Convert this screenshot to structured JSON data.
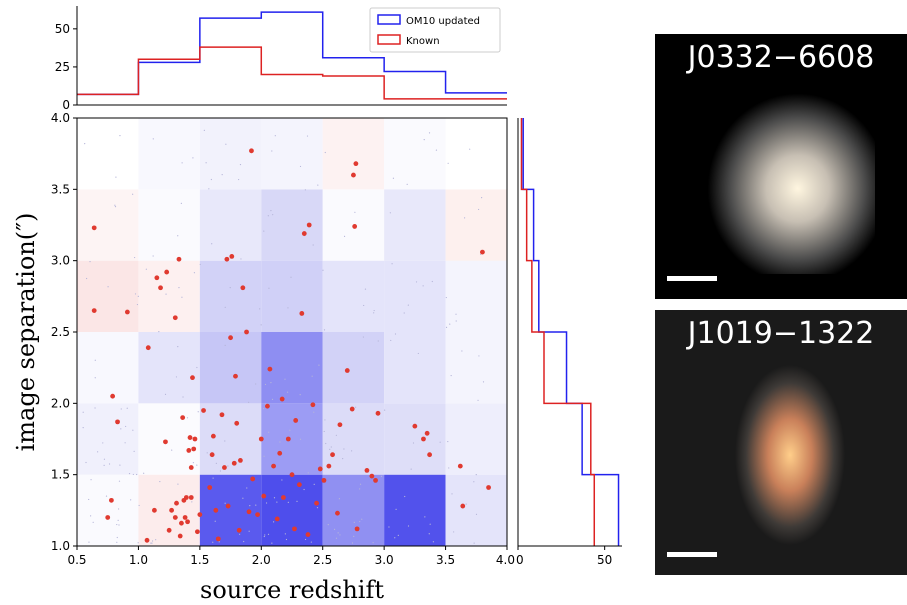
{
  "chart_data": [
    {
      "type": "histogram",
      "panel": "top marginal",
      "xlim": [
        0.5,
        4.0
      ],
      "ylim": [
        0,
        65
      ],
      "yticks": [
        "0",
        "25",
        "50"
      ],
      "bin_edges": [
        0.5,
        1.0,
        1.5,
        2.0,
        2.5,
        3.0,
        3.5,
        4.0
      ],
      "series": [
        {
          "name": "OM10 updated",
          "color": "#2222ee",
          "values": [
            7,
            28,
            57,
            61,
            31,
            22,
            8
          ]
        },
        {
          "name": "Known",
          "color": "#dd2222",
          "values": [
            7,
            30,
            38,
            20,
            19,
            4,
            4
          ]
        }
      ],
      "legend_position": "top-right"
    },
    {
      "type": "heatmap",
      "panel": "main",
      "xlabel": "source redshift",
      "ylabel": "image separation(″)",
      "xlim": [
        0.5,
        4.0
      ],
      "ylim": [
        1.0,
        4.0
      ],
      "xticks": [
        "0.5",
        "1.0",
        "1.5",
        "2.0",
        "2.5",
        "3.0",
        "3.5",
        "4.0"
      ],
      "yticks": [
        "1.0",
        "1.5",
        "2.0",
        "2.5",
        "3.0",
        "3.5",
        "4.0"
      ],
      "x_edges": [
        0.5,
        1.0,
        1.5,
        2.0,
        2.5,
        3.0,
        3.5,
        4.0
      ],
      "y_edges": [
        1.0,
        1.5,
        2.0,
        2.5,
        3.0,
        3.5,
        4.0
      ],
      "cells": [
        [
          "#fafafe",
          "#fcecec",
          "#5a5aee",
          "#4e4eec",
          "#9090f2",
          "#5252ec",
          "#e4e4fa"
        ],
        [
          "#f0f0fc",
          "#fbfbfe",
          "#dcdcf8",
          "#9c9cf4",
          "#dcdcf8",
          "#dedef8",
          "#eeeefc"
        ],
        [
          "#f8f8fe",
          "#e4e4fa",
          "#c6c6f6",
          "#8e8ef2",
          "#d2d2f7",
          "#e4e4fa",
          "#f4f4fd"
        ],
        [
          "#fbe6e6",
          "#fdf0f0",
          "#d2d2f7",
          "#d0d0f7",
          "#e4e4fa",
          "#e4e4fa",
          "#f4f4fd"
        ],
        [
          "#fdf4f4",
          "#fafafe",
          "#e8e8fa",
          "#d8d8f7",
          "#fafafe",
          "#e8e8fa",
          "#fdf0ee"
        ],
        [
          "#ffffff",
          "#f8f8fe",
          "#f2f2fc",
          "#f4f4fd",
          "#fdf2f2",
          "#fafafe",
          "#ffffff"
        ]
      ],
      "known_points": [
        [
          0.64,
          3.23
        ],
        [
          0.64,
          2.65
        ],
        [
          0.75,
          1.2
        ],
        [
          0.78,
          1.32
        ],
        [
          0.79,
          2.05
        ],
        [
          0.83,
          1.87
        ],
        [
          0.91,
          2.64
        ],
        [
          1.07,
          1.04
        ],
        [
          1.08,
          2.39
        ],
        [
          1.13,
          1.25
        ],
        [
          1.15,
          2.88
        ],
        [
          1.18,
          2.81
        ],
        [
          1.22,
          1.73
        ],
        [
          1.23,
          2.92
        ],
        [
          1.25,
          1.11
        ],
        [
          1.27,
          1.25
        ],
        [
          1.3,
          1.2
        ],
        [
          1.3,
          2.6
        ],
        [
          1.31,
          1.3
        ],
        [
          1.33,
          3.01
        ],
        [
          1.34,
          1.07
        ],
        [
          1.35,
          1.16
        ],
        [
          1.36,
          1.9
        ],
        [
          1.37,
          1.32
        ],
        [
          1.38,
          1.2
        ],
        [
          1.39,
          1.34
        ],
        [
          1.4,
          1.17
        ],
        [
          1.41,
          1.67
        ],
        [
          1.42,
          1.76
        ],
        [
          1.43,
          1.55
        ],
        [
          1.43,
          1.34
        ],
        [
          1.44,
          2.18
        ],
        [
          1.45,
          1.68
        ],
        [
          1.46,
          1.75
        ],
        [
          1.48,
          1.1
        ],
        [
          1.5,
          1.22
        ],
        [
          1.53,
          1.95
        ],
        [
          1.58,
          1.41
        ],
        [
          1.6,
          1.64
        ],
        [
          1.61,
          1.77
        ],
        [
          1.63,
          1.25
        ],
        [
          1.65,
          1.05
        ],
        [
          1.68,
          1.92
        ],
        [
          1.7,
          1.55
        ],
        [
          1.72,
          3.01
        ],
        [
          1.73,
          1.28
        ],
        [
          1.75,
          2.46
        ],
        [
          1.76,
          3.03
        ],
        [
          1.78,
          1.58
        ],
        [
          1.79,
          2.19
        ],
        [
          1.8,
          1.86
        ],
        [
          1.82,
          1.11
        ],
        [
          1.83,
          1.6
        ],
        [
          1.85,
          2.81
        ],
        [
          1.88,
          2.5
        ],
        [
          1.9,
          1.24
        ],
        [
          1.92,
          3.77
        ],
        [
          1.93,
          1.47
        ],
        [
          1.97,
          1.22
        ],
        [
          2.0,
          1.75
        ],
        [
          2.02,
          1.35
        ],
        [
          2.05,
          1.98
        ],
        [
          2.07,
          2.24
        ],
        [
          2.1,
          1.56
        ],
        [
          2.13,
          1.19
        ],
        [
          2.15,
          1.65
        ],
        [
          2.17,
          2.03
        ],
        [
          2.18,
          1.34
        ],
        [
          2.22,
          1.75
        ],
        [
          2.25,
          1.5
        ],
        [
          2.27,
          1.12
        ],
        [
          2.28,
          1.88
        ],
        [
          2.31,
          1.43
        ],
        [
          2.33,
          2.63
        ],
        [
          2.35,
          3.19
        ],
        [
          2.38,
          1.08
        ],
        [
          2.39,
          3.25
        ],
        [
          2.42,
          1.99
        ],
        [
          2.45,
          1.3
        ],
        [
          2.48,
          1.54
        ],
        [
          2.51,
          1.46
        ],
        [
          2.55,
          1.56
        ],
        [
          2.58,
          1.64
        ],
        [
          2.62,
          1.23
        ],
        [
          2.64,
          1.85
        ],
        [
          2.7,
          2.23
        ],
        [
          2.74,
          1.96
        ],
        [
          2.75,
          3.6
        ],
        [
          2.76,
          3.24
        ],
        [
          2.77,
          3.68
        ],
        [
          2.78,
          1.12
        ],
        [
          2.86,
          1.53
        ],
        [
          2.9,
          1.49
        ],
        [
          2.93,
          1.46
        ],
        [
          2.95,
          1.93
        ],
        [
          3.25,
          1.84
        ],
        [
          3.32,
          1.75
        ],
        [
          3.35,
          1.79
        ],
        [
          3.37,
          1.64
        ],
        [
          3.62,
          1.56
        ],
        [
          3.64,
          1.28
        ],
        [
          3.8,
          3.06
        ],
        [
          3.85,
          1.41
        ]
      ]
    },
    {
      "type": "histogram",
      "panel": "right marginal",
      "orientation": "horizontal",
      "xlim": [
        0,
        60
      ],
      "ylim": [
        1.0,
        4.0
      ],
      "xticks": [
        "0",
        "50"
      ],
      "bin_edges": [
        1.0,
        1.5,
        2.0,
        2.5,
        3.0,
        3.5,
        4.0
      ],
      "series": [
        {
          "name": "OM10 updated",
          "color": "#2222ee",
          "values": [
            58,
            37,
            28,
            12,
            9,
            3
          ]
        },
        {
          "name": "Known",
          "color": "#dd2222",
          "values": [
            44,
            42,
            15,
            8,
            5,
            2
          ]
        }
      ]
    }
  ],
  "legend": [
    {
      "label": "OM10 updated",
      "color": "#2222ee"
    },
    {
      "label": "Known",
      "color": "#dd2222"
    }
  ],
  "labels": {
    "x": "source redshift",
    "y": "image separation(″)"
  },
  "cutouts": [
    {
      "title": "J0332−6608",
      "colors": {
        "core": "#fff6e0",
        "mid": "#c7bfb3",
        "halo": "#4b4b4b"
      }
    },
    {
      "title": "J1019−1322",
      "colors": {
        "core": "#ffce8a",
        "mid": "#c9805a",
        "halo": "#3e3a37"
      }
    }
  ]
}
